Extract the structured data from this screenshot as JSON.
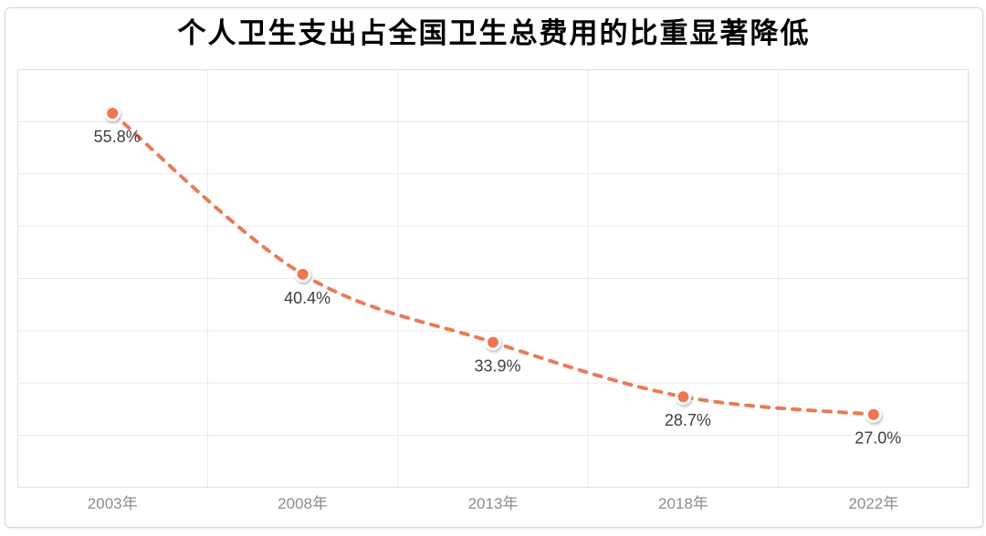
{
  "chart_data": {
    "type": "line",
    "title": "个人卫生支出占全国卫生总费用的比重显著降低",
    "categories": [
      "2003年",
      "2008年",
      "2013年",
      "2018年",
      "2022年"
    ],
    "values": [
      55.8,
      40.4,
      33.9,
      28.7,
      27.0
    ],
    "data_labels": [
      "55.8%",
      "40.4%",
      "33.9%",
      "28.7%",
      "27.0%"
    ],
    "xlabel": "",
    "ylabel": "",
    "ylim": [
      20,
      60
    ],
    "y_major_unit": 5,
    "grid": "on",
    "legend": "none",
    "line_style": "dashed",
    "marker": "circle"
  },
  "theme": {
    "title_color": "#000000",
    "line_color": "#E87C57",
    "marker_fill": "#F0764F",
    "marker_ring": "#FFFFFF",
    "grid_color": "#E9E9E9",
    "plot_border_color": "#DFDFDF",
    "data_label_color": "#3F3F3F",
    "axis_label_color": "#8C8C8C"
  }
}
